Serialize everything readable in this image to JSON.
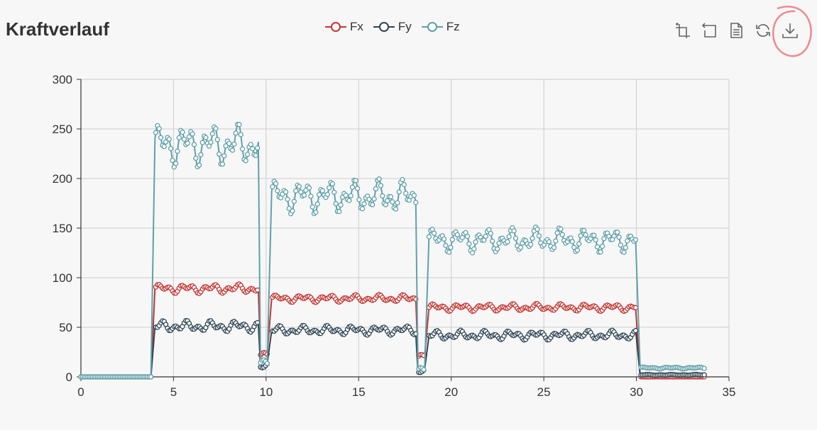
{
  "chart_title": "Kraftverlauf",
  "toolbox": [
    {
      "name": "zoom-icon"
    },
    {
      "name": "zoom-reset-icon"
    },
    {
      "name": "data-view-icon"
    },
    {
      "name": "restore-icon"
    },
    {
      "name": "save-image-icon"
    }
  ],
  "colors": {
    "Fx": "#c23531",
    "Fy": "#2f4554",
    "Fz": "#61a0a8",
    "axis": "#333333",
    "grid": "#cccccc",
    "annotation": "#f08a8a"
  },
  "chart_data": {
    "type": "line",
    "title": "Kraftverlauf",
    "xlim": [
      0,
      35
    ],
    "ylim": [
      0,
      300
    ],
    "x_ticks": [
      "0",
      "5",
      "10",
      "15",
      "20",
      "25",
      "30",
      "35"
    ],
    "y_ticks": [
      "0",
      "50",
      "100",
      "150",
      "200",
      "250",
      "300"
    ],
    "grid": true,
    "legend_position": "top-center",
    "series": [
      {
        "name": "Fx",
        "color": "#c23531",
        "segments": [
          {
            "x0": 0,
            "x1": 3.8,
            "center": 0,
            "amp": 0
          },
          {
            "x0": 4.0,
            "x1": 9.6,
            "center": 89,
            "amp": 5
          },
          {
            "x0": 9.7,
            "x1": 10.1,
            "center": 22,
            "amp": 3
          },
          {
            "x0": 10.3,
            "x1": 18.1,
            "center": 79,
            "amp": 4
          },
          {
            "x0": 18.2,
            "x1": 18.6,
            "center": 20,
            "amp": 3
          },
          {
            "x0": 18.8,
            "x1": 30.0,
            "center": 70,
            "amp": 4
          },
          {
            "x0": 30.2,
            "x1": 33.7,
            "center": 0,
            "amp": 0
          }
        ]
      },
      {
        "name": "Fy",
        "color": "#2f4554",
        "segments": [
          {
            "x0": 0,
            "x1": 3.8,
            "center": 0,
            "amp": 0
          },
          {
            "x0": 4.0,
            "x1": 9.6,
            "center": 51,
            "amp": 6
          },
          {
            "x0": 9.7,
            "x1": 10.1,
            "center": 10,
            "amp": 4
          },
          {
            "x0": 10.3,
            "x1": 18.1,
            "center": 47,
            "amp": 5
          },
          {
            "x0": 18.2,
            "x1": 18.6,
            "center": 5,
            "amp": 3
          },
          {
            "x0": 18.8,
            "x1": 30.0,
            "center": 42,
            "amp": 5
          },
          {
            "x0": 30.2,
            "x1": 33.7,
            "center": 2,
            "amp": 0.5
          }
        ]
      },
      {
        "name": "Fz",
        "color": "#61a0a8",
        "segments": [
          {
            "x0": 0,
            "x1": 3.8,
            "center": 0,
            "amp": 0
          },
          {
            "x0": 4.0,
            "x1": 9.6,
            "center": 234,
            "amp": 23
          },
          {
            "x0": 9.7,
            "x1": 10.1,
            "center": 13,
            "amp": 5
          },
          {
            "x0": 10.3,
            "x1": 18.1,
            "center": 182,
            "amp": 18
          },
          {
            "x0": 18.2,
            "x1": 18.6,
            "center": 6,
            "amp": 4
          },
          {
            "x0": 18.8,
            "x1": 30.0,
            "center": 138,
            "amp": 13
          },
          {
            "x0": 30.2,
            "x1": 33.7,
            "center": 9,
            "amp": 1
          }
        ]
      }
    ]
  }
}
